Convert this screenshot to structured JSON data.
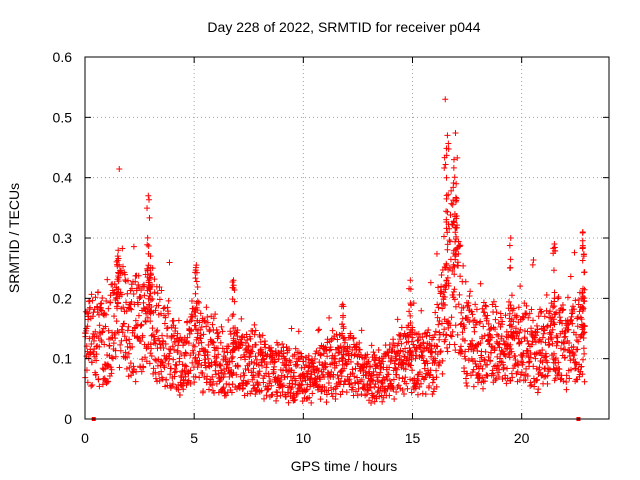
{
  "chart_data": {
    "type": "scatter",
    "title": "Day 228 of 2022, SRMTID for receiver p044",
    "xlabel": "GPS time / hours",
    "ylabel": "SRMTID / TECUs",
    "xlim": [
      0,
      24
    ],
    "ylim": [
      0,
      0.6
    ],
    "xticks": [
      0,
      5,
      10,
      15,
      20
    ],
    "xtick_labels": [
      "0",
      "5",
      "10",
      "15",
      "20"
    ],
    "yticks": [
      0,
      0.1,
      0.2,
      0.3,
      0.4,
      0.5,
      0.6
    ],
    "ytick_labels": [
      "0",
      "0.1",
      "0.2",
      "0.3",
      "0.4",
      "0.5",
      "0.6"
    ],
    "grid": true,
    "marker": "+",
    "series": [
      {
        "name": "SRMTID",
        "color": "#ff0000",
        "baseline": [
          [
            0.0,
            0.12
          ],
          [
            0.5,
            0.14
          ],
          [
            1.0,
            0.12
          ],
          [
            1.5,
            0.19
          ],
          [
            2.0,
            0.15
          ],
          [
            2.5,
            0.15
          ],
          [
            3.0,
            0.16
          ],
          [
            3.5,
            0.14
          ],
          [
            4.0,
            0.11
          ],
          [
            4.5,
            0.09
          ],
          [
            5.0,
            0.13
          ],
          [
            5.5,
            0.11
          ],
          [
            6.0,
            0.1
          ],
          [
            6.5,
            0.09
          ],
          [
            7.0,
            0.1
          ],
          [
            7.5,
            0.09
          ],
          [
            8.0,
            0.09
          ],
          [
            8.5,
            0.08
          ],
          [
            9.0,
            0.08
          ],
          [
            9.5,
            0.07
          ],
          [
            10.0,
            0.065
          ],
          [
            10.5,
            0.075
          ],
          [
            11.0,
            0.08
          ],
          [
            11.5,
            0.09
          ],
          [
            12.0,
            0.1
          ],
          [
            12.5,
            0.08
          ],
          [
            13.0,
            0.065
          ],
          [
            13.5,
            0.07
          ],
          [
            14.0,
            0.08
          ],
          [
            14.5,
            0.1
          ],
          [
            15.0,
            0.1
          ],
          [
            15.5,
            0.09
          ],
          [
            16.0,
            0.11
          ],
          [
            16.5,
            0.18
          ],
          [
            16.8,
            0.26
          ],
          [
            17.0,
            0.24
          ],
          [
            17.3,
            0.14
          ],
          [
            17.6,
            0.13
          ],
          [
            18.0,
            0.12
          ],
          [
            18.5,
            0.13
          ],
          [
            19.0,
            0.12
          ],
          [
            19.5,
            0.12
          ],
          [
            20.0,
            0.12
          ],
          [
            20.5,
            0.12
          ],
          [
            21.0,
            0.11
          ],
          [
            21.5,
            0.13
          ],
          [
            22.0,
            0.12
          ],
          [
            22.5,
            0.13
          ],
          [
            22.9,
            0.14
          ]
        ],
        "spikes": [
          [
            1.5,
            0.27
          ],
          [
            2.9,
            0.37
          ],
          [
            3.0,
            0.27
          ],
          [
            5.1,
            0.255
          ],
          [
            6.8,
            0.23
          ],
          [
            11.8,
            0.19
          ],
          [
            14.9,
            0.23
          ],
          [
            16.5,
            0.53
          ],
          [
            16.6,
            0.47
          ],
          [
            16.9,
            0.43
          ],
          [
            17.0,
            0.39
          ],
          [
            19.5,
            0.3
          ],
          [
            21.5,
            0.29
          ],
          [
            22.8,
            0.31
          ],
          [
            22.85,
            0.27
          ]
        ],
        "zero_points": [
          [
            0.4,
            0.0
          ],
          [
            22.6,
            0.0
          ]
        ]
      }
    ]
  }
}
